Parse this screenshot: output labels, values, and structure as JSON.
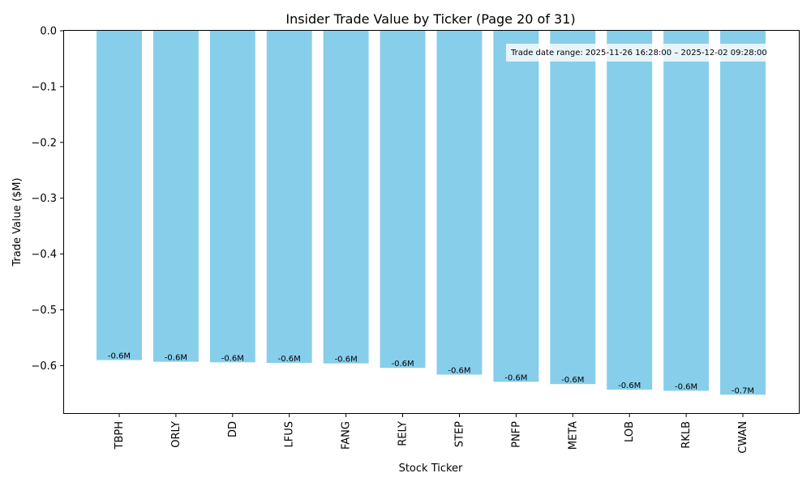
{
  "chart_data": {
    "type": "bar",
    "title": "Insider Trade Value by Ticker (Page 20 of 31)",
    "xlabel": "Stock Ticker",
    "ylabel": "Trade Value ($M)",
    "categories": [
      "TBPH",
      "ORLY",
      "DD",
      "LFUS",
      "FANG",
      "RELY",
      "STEP",
      "PNFP",
      "META",
      "LOB",
      "RKLB",
      "CWAN"
    ],
    "values": [
      -0.59,
      -0.593,
      -0.594,
      -0.595,
      -0.596,
      -0.604,
      -0.616,
      -0.629,
      -0.633,
      -0.643,
      -0.645,
      -0.652
    ],
    "data_labels": [
      "-0.6M",
      "-0.6M",
      "-0.6M",
      "-0.6M",
      "-0.6M",
      "-0.6M",
      "-0.6M",
      "-0.6M",
      "-0.6M",
      "-0.6M",
      "-0.6M",
      "-0.7M"
    ],
    "yticks": [
      0.0,
      -0.1,
      -0.2,
      -0.3,
      -0.4,
      -0.5,
      -0.6
    ],
    "ytick_labels": [
      "0.0",
      "−0.1",
      "−0.2",
      "−0.3",
      "−0.4",
      "−0.5",
      "−0.6"
    ],
    "ylim": [
      -0.685,
      0.0
    ],
    "grid": false,
    "bar_color": "#87ceeb",
    "annotation": "Trade date range: 2025-11-26 16:28:00 – 2025-12-02 09:28:00"
  }
}
